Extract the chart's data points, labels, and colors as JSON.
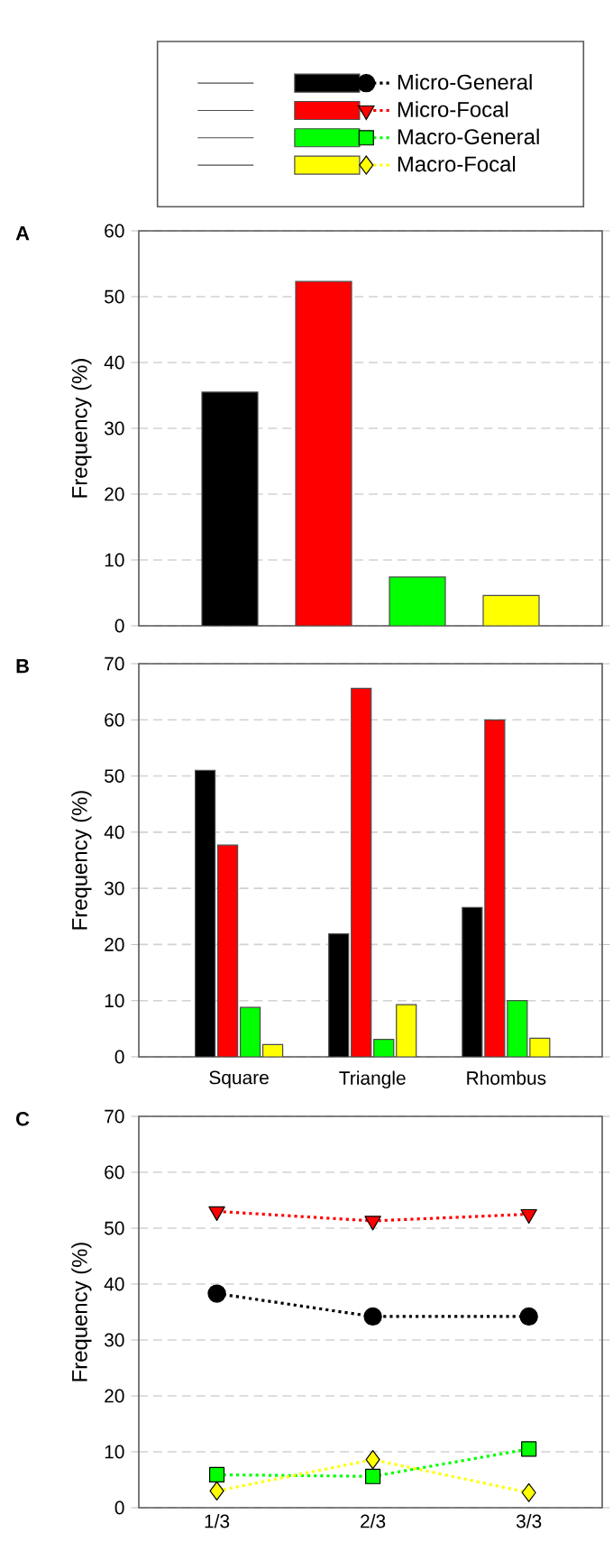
{
  "chart_data": [
    {
      "type": "bar",
      "title": "A",
      "ylabel": "Frequency (%)",
      "categories": [
        null
      ],
      "ylim": [
        0,
        60
      ],
      "yticks": [
        0,
        10,
        20,
        30,
        40,
        50,
        60
      ],
      "grid": "y",
      "legend": "top",
      "series": [
        {
          "name": "Micro-General",
          "color": "#000000",
          "values": [
            35.5
          ]
        },
        {
          "name": "Micro-Focal",
          "color": "#ff0000",
          "values": [
            52.3
          ]
        },
        {
          "name": "Macro-General",
          "color": "#00ff00",
          "values": [
            7.4
          ]
        },
        {
          "name": "Macro-Focal",
          "color": "#ffff00",
          "values": [
            4.6
          ]
        }
      ]
    },
    {
      "type": "bar",
      "title": "B",
      "ylabel": "Frequency (%)",
      "categories": [
        "Square",
        "Triangle",
        "Rhombus"
      ],
      "ylim": [
        0,
        70
      ],
      "yticks": [
        0,
        10,
        20,
        30,
        40,
        50,
        60,
        70
      ],
      "grid": "y",
      "series": [
        {
          "color": "#000000",
          "values": [
            51,
            21.9,
            26.6
          ]
        },
        {
          "color": "#ff0000",
          "values": [
            37.7,
            65.6,
            60
          ]
        },
        {
          "color": "#00ff00",
          "values": [
            8.8,
            3.1,
            10
          ]
        },
        {
          "color": "#ffff00",
          "values": [
            2.2,
            9.3,
            3.3
          ]
        }
      ]
    },
    {
      "type": "line",
      "title": "C",
      "ylabel": "Frequency (%)",
      "categories": [
        "1/3",
        "2/3",
        "3/3"
      ],
      "ylim": [
        0,
        70
      ],
      "yticks": [
        0,
        10,
        20,
        30,
        40,
        50,
        60,
        70
      ],
      "grid": "y",
      "line_style": "dotted",
      "series": [
        {
          "color": "#000000",
          "marker": "circle",
          "values": [
            38.3,
            34.2,
            34.2
          ]
        },
        {
          "color": "#ff0000",
          "marker": "triangle",
          "values": [
            53,
            51.3,
            52.5
          ]
        },
        {
          "color": "#00ff00",
          "marker": "square",
          "values": [
            5.9,
            5.6,
            10.5
          ]
        },
        {
          "color": "#ffff00",
          "marker": "diamond",
          "values": [
            3,
            8.6,
            2.7
          ]
        }
      ]
    }
  ]
}
